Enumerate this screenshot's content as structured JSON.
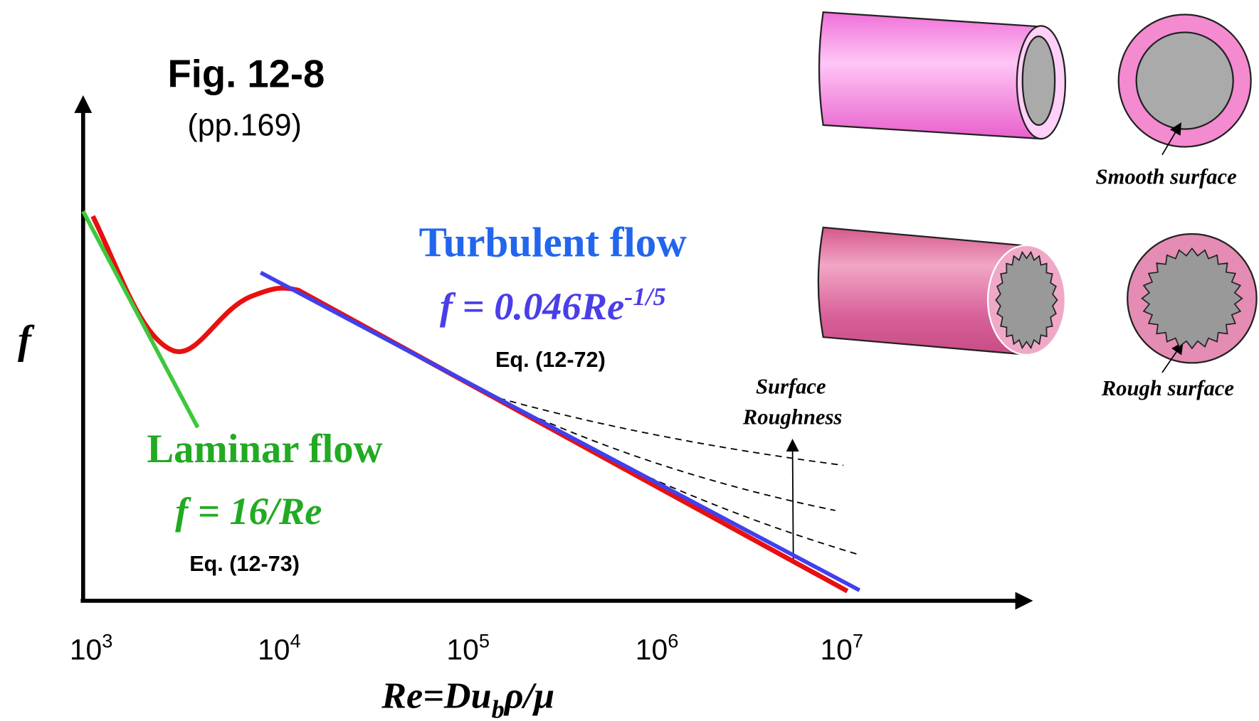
{
  "figure": {
    "title": "Fig. 12-8",
    "subtitle": "(pp.169)"
  },
  "axes": {
    "y_label": "f",
    "x_label": {
      "main": "Re=Du",
      "subscript": "b",
      "rest": "ρ/μ"
    },
    "x_ticks": [
      {
        "base": "10",
        "exponent": "3"
      },
      {
        "base": "10",
        "exponent": "4"
      },
      {
        "base": "10",
        "exponent": "5"
      },
      {
        "base": "10",
        "exponent": "6"
      },
      {
        "base": "10",
        "exponent": "7"
      }
    ]
  },
  "turbulent": {
    "label": "Turbulent flow",
    "equation": "f = 0.046Re",
    "exponent": "-1/5",
    "reference": "Eq. (12-72)"
  },
  "laminar": {
    "label": "Laminar flow",
    "equation": "f = 16/Re",
    "reference": "Eq. (12-73)"
  },
  "roughness": {
    "line1": "Surface",
    "line2": "Roughness"
  },
  "pipes": {
    "smooth": "Smooth surface",
    "rough": "Rough surface"
  }
}
